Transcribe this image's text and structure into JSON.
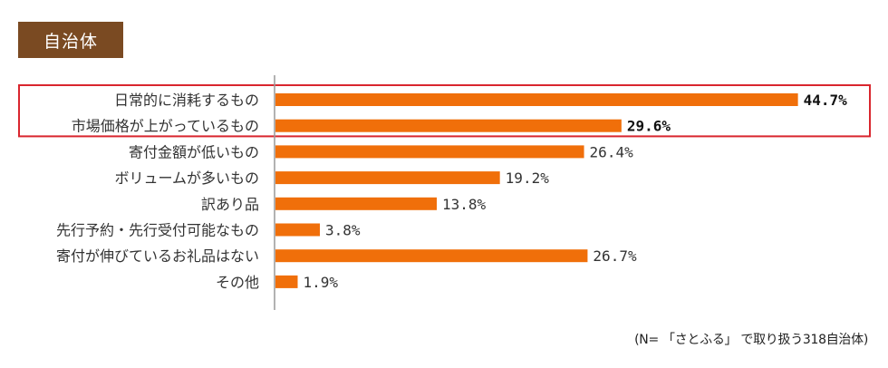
{
  "header": {
    "label": "自治体"
  },
  "footnote": "(N= 「さとふる」 で取り扱う318自治体)",
  "colors": {
    "bar": "#f06f0a",
    "highlight_border": "#d9262e",
    "header_bg": "#7a4a22",
    "axis": "#999999"
  },
  "chart_data": {
    "type": "bar",
    "orientation": "horizontal",
    "categories": [
      "日常的に消耗するもの",
      "市場価格が上がっているもの",
      "寄付金額が低いもの",
      "ボリュームが多いもの",
      "訳あり品",
      "先行予約・先行受付可能なもの",
      "寄付が伸びているお礼品はない",
      "その他"
    ],
    "values": [
      44.7,
      29.6,
      26.4,
      19.2,
      13.8,
      3.8,
      26.7,
      1.9
    ],
    "value_labels": [
      "44.7%",
      "29.6%",
      "26.4%",
      "19.2%",
      "13.8%",
      "3.8%",
      "26.7%",
      "1.9%"
    ],
    "highlighted": [
      0,
      1
    ],
    "unit": "%"
  }
}
